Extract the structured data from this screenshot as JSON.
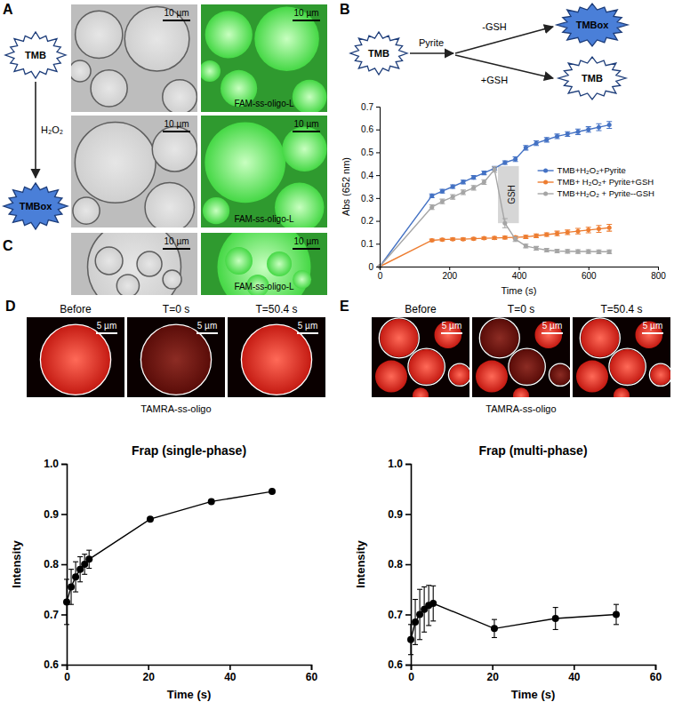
{
  "panel_letters": [
    "A",
    "B",
    "C",
    "D",
    "E"
  ],
  "panel_a": {
    "scheme": {
      "from": "TMB",
      "reagent": "H₂O₂",
      "to": "TMBox"
    },
    "images": [
      {
        "scale_bar": "10 µm"
      },
      {
        "scale_bar": "10 µm",
        "label": "FAM-ss-oligo-L"
      },
      {
        "scale_bar": "10 µm"
      },
      {
        "scale_bar": "10 µm",
        "label": "FAM-ss-oligo-L"
      }
    ]
  },
  "panel_b": {
    "scheme": {
      "from": "TMB",
      "catalyst": "Pyrite",
      "minus": "-GSH",
      "plus": "+GSH",
      "product_minus": "TMBox",
      "product_plus": "TMB"
    }
  },
  "panel_c": {
    "images": [
      {
        "scale_bar": "10 µm"
      },
      {
        "scale_bar": "10 µm",
        "label": "FAM-ss-oligo-L"
      }
    ]
  },
  "panel_d": {
    "frames": [
      {
        "title": "Before",
        "scale_bar": "5 µm"
      },
      {
        "title": "T=0 s",
        "scale_bar": "5 µm"
      },
      {
        "title": "T=50.4 s",
        "scale_bar": "5 µm"
      }
    ],
    "caption": "TAMRA-ss-oligo"
  },
  "panel_e": {
    "frames": [
      {
        "title": "Before",
        "scale_bar": "5 µm"
      },
      {
        "title": "T=0 s",
        "scale_bar": "5 µm"
      },
      {
        "title": "T=50.4 s",
        "scale_bar": "5 µm"
      }
    ],
    "caption": "TAMRA-ss-oligo"
  },
  "chart_data": [
    {
      "type": "line",
      "x_label": "Time (s)",
      "y_label": "Abs (652 nm)",
      "x": [
        0,
        150,
        180,
        210,
        240,
        270,
        300,
        330,
        360,
        390,
        420,
        450,
        480,
        510,
        540,
        570,
        600,
        630,
        660
      ],
      "series": [
        {
          "name": "TMB+H₂O₂+Pyrite",
          "color": "#4472c4",
          "values": [
            0,
            0.31,
            0.33,
            0.35,
            0.37,
            0.39,
            0.41,
            0.43,
            0.455,
            0.47,
            0.52,
            0.54,
            0.555,
            0.57,
            0.58,
            0.59,
            0.6,
            0.61,
            0.62
          ],
          "errors": [
            0,
            0.008,
            0.008,
            0.008,
            0.008,
            0.008,
            0.008,
            0.008,
            0.008,
            0.01,
            0.01,
            0.01,
            0.01,
            0.01,
            0.01,
            0.012,
            0.012,
            0.015,
            0.015
          ]
        },
        {
          "name": "TMB+ H₂O₂+ Pyrite+GSH",
          "color": "#ed7d31",
          "values": [
            0,
            0.115,
            0.118,
            0.12,
            0.12,
            0.122,
            0.124,
            0.125,
            0.127,
            0.128,
            0.13,
            0.135,
            0.14,
            0.145,
            0.15,
            0.155,
            0.16,
            0.165,
            0.17
          ],
          "errors": [
            0,
            0.005,
            0.005,
            0.005,
            0.005,
            0.005,
            0.005,
            0.006,
            0.006,
            0.006,
            0.007,
            0.008,
            0.008,
            0.01,
            0.01,
            0.012,
            0.012,
            0.015,
            0.015
          ]
        },
        {
          "name": "TMB+H₂O₂ + Pyrite--GSH",
          "color": "#a5a5a5",
          "values": [
            0,
            0.26,
            0.285,
            0.305,
            0.325,
            0.345,
            0.37,
            0.425,
            0.19,
            0.12,
            0.09,
            0.08,
            0.072,
            0.068,
            0.067,
            0.066,
            0.066,
            0.065,
            0.065
          ],
          "errors": [
            0,
            0.01,
            0.01,
            0.01,
            0.01,
            0.01,
            0.01,
            0.012,
            0.02,
            0.01,
            0.008,
            0.008,
            0.008,
            0.008,
            0.008,
            0.008,
            0.008,
            0.008,
            0.008
          ]
        }
      ],
      "annotations": [
        {
          "text": "GSH",
          "x": [
            340,
            400
          ],
          "y": [
            0.19,
            0.44
          ]
        }
      ],
      "xlim": [
        0,
        800
      ],
      "xticks": [
        0,
        200,
        400,
        600,
        800
      ],
      "ylim": [
        0,
        0.7
      ],
      "yticks": [
        0,
        0.1,
        0.2,
        0.3,
        0.4,
        0.5,
        0.6,
        0.7
      ],
      "grid": false,
      "legend": "right",
      "marker": "circle"
    },
    {
      "type": "line",
      "title": "Frap (single-phase)",
      "x_label": "Time (s)",
      "y_label": "Intensity",
      "x": [
        0,
        1.1,
        2.2,
        3.3,
        4.4,
        5.5,
        20.5,
        35.5,
        50.4
      ],
      "series": [
        {
          "color": "#000000",
          "values": [
            0.725,
            0.755,
            0.775,
            0.79,
            0.8,
            0.81,
            0.89,
            0.925,
            0.945
          ],
          "errors": [
            0.045,
            0.035,
            0.03,
            0.025,
            0.02,
            0.018,
            0.003,
            0.003,
            0.003
          ]
        }
      ],
      "xlim": [
        0,
        60
      ],
      "xticks": [
        0,
        20,
        40,
        60
      ],
      "ylim": [
        0.6,
        1
      ],
      "yticks": [
        0.6,
        0.7,
        0.8,
        0.9,
        {
          "value": 1,
          "label": "1.0"
        }
      ],
      "grid": false,
      "marker": "circle"
    },
    {
      "type": "line",
      "title": "Frap (multi-phase)",
      "x_label": "Time (s)",
      "y_label": "Intensity",
      "x": [
        0,
        1.1,
        2.2,
        3.3,
        4.4,
        5.5,
        20.5,
        35.5,
        50.4
      ],
      "series": [
        {
          "color": "#000000",
          "values": [
            0.65,
            0.685,
            0.7,
            0.71,
            0.718,
            0.722,
            0.672,
            0.692,
            0.7
          ],
          "errors": [
            0.03,
            0.045,
            0.05,
            0.045,
            0.04,
            0.035,
            0.018,
            0.022,
            0.02
          ]
        }
      ],
      "xlim": [
        0,
        60
      ],
      "xticks": [
        0,
        20,
        40,
        60
      ],
      "ylim": [
        0.6,
        1
      ],
      "yticks": [
        0.6,
        0.7,
        0.8,
        0.9,
        {
          "value": 1,
          "label": "1.0"
        }
      ],
      "grid": false,
      "marker": "circle"
    }
  ]
}
